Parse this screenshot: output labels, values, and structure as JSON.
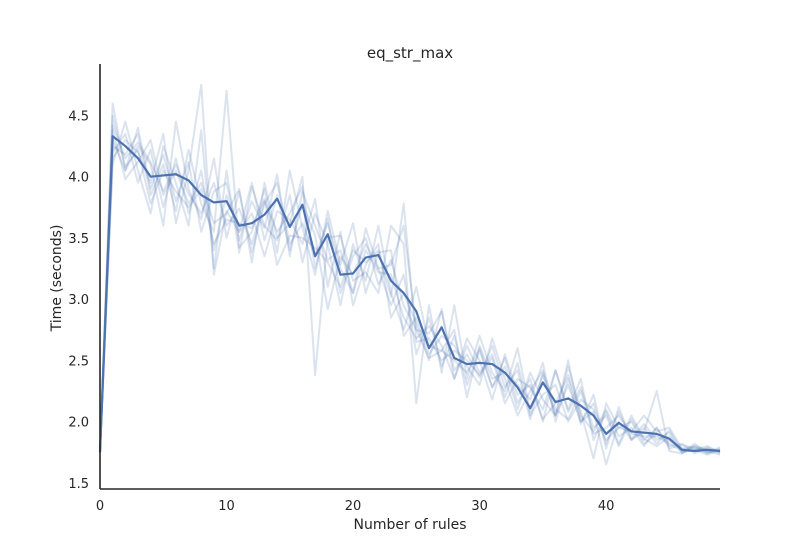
{
  "chart_data": {
    "type": "line",
    "title": "eq_str_max",
    "xlabel": "Number of rules",
    "ylabel": "Time (seconds)",
    "xlim": [
      0,
      49
    ],
    "ylim": [
      1.45,
      4.92
    ],
    "xticks": [
      "0",
      "10",
      "20",
      "30",
      "40"
    ],
    "yticks": [
      "1.5",
      "2.0",
      "2.5",
      "3.0",
      "3.5",
      "4.0",
      "4.5"
    ],
    "grid": false,
    "colors": {
      "mean": "#4c72b0",
      "runs": "#4c72b0",
      "axis": "#262626"
    },
    "x": [
      0,
      1,
      2,
      3,
      4,
      5,
      6,
      7,
      8,
      9,
      10,
      11,
      12,
      13,
      14,
      15,
      16,
      17,
      18,
      19,
      20,
      21,
      22,
      23,
      24,
      25,
      26,
      27,
      28,
      29,
      30,
      31,
      32,
      33,
      34,
      35,
      36,
      37,
      38,
      39,
      40,
      41,
      42,
      43,
      44,
      45,
      46,
      47,
      48,
      49
    ],
    "series": [
      {
        "values": [
          1.75,
          4.33,
          4.25,
          4.15,
          4.0,
          4.01,
          4.02,
          3.97,
          3.85,
          3.79,
          3.8,
          3.6,
          3.62,
          3.69,
          3.82,
          3.59,
          3.77,
          3.35,
          3.53,
          3.2,
          3.21,
          3.34,
          3.36,
          3.15,
          3.05,
          2.9,
          2.6,
          2.77,
          2.52,
          2.47,
          2.48,
          2.47,
          2.4,
          2.28,
          2.11,
          2.32,
          2.16,
          2.19,
          2.13,
          2.05,
          1.9,
          1.99,
          1.92,
          1.91,
          1.9,
          1.86,
          1.77,
          1.76,
          1.77,
          1.76
        ]
      },
      {
        "values": [
          1.75,
          4.42,
          4.15,
          4.28,
          4.12,
          3.88,
          4.1,
          3.86,
          3.7,
          3.95,
          3.6,
          3.74,
          3.45,
          3.8,
          3.55,
          3.7,
          3.92,
          3.25,
          3.66,
          3.05,
          3.35,
          3.5,
          3.12,
          3.32,
          2.95,
          2.75,
          2.72,
          2.9,
          2.42,
          2.55,
          2.36,
          2.62,
          2.28,
          2.42,
          2.02,
          2.4,
          2.05,
          2.3,
          2.0,
          2.15,
          1.82,
          2.08,
          1.86,
          1.98,
          1.85,
          1.91,
          1.74,
          1.8,
          1.74,
          1.78
        ]
      },
      {
        "values": [
          1.75,
          4.6,
          4.05,
          4.4,
          3.9,
          4.18,
          3.8,
          4.12,
          3.55,
          3.88,
          3.95,
          3.48,
          3.8,
          3.58,
          4.02,
          3.35,
          3.88,
          3.6,
          3.32,
          3.4,
          3.05,
          3.58,
          3.25,
          2.95,
          3.2,
          2.55,
          2.85,
          2.45,
          2.7,
          2.3,
          2.58,
          2.28,
          2.52,
          2.15,
          2.35,
          2.0,
          2.42,
          2.08,
          2.28,
          1.95,
          2.05,
          1.8,
          2.02,
          1.85,
          1.95,
          1.8,
          1.82,
          1.74,
          1.79,
          1.75
        ]
      },
      {
        "values": [
          1.75,
          4.2,
          4.35,
          3.95,
          4.22,
          3.75,
          4.15,
          3.7,
          4.05,
          3.4,
          3.85,
          3.55,
          3.7,
          3.35,
          3.72,
          3.65,
          3.45,
          3.82,
          3.1,
          3.55,
          2.95,
          3.28,
          3.45,
          2.85,
          3.05,
          2.8,
          2.5,
          2.92,
          2.35,
          2.62,
          2.4,
          2.55,
          2.2,
          2.48,
          2.05,
          2.22,
          2.3,
          2.0,
          2.18,
          2.1,
          1.85,
          1.95,
          2.0,
          1.82,
          1.9,
          1.84,
          1.78,
          1.77,
          1.73,
          1.77
        ]
      },
      {
        "values": [
          1.75,
          4.1,
          4.45,
          4.05,
          3.7,
          4.25,
          3.95,
          3.6,
          4.38,
          3.25,
          4.05,
          3.38,
          3.92,
          3.6,
          3.48,
          3.85,
          3.3,
          3.7,
          3.45,
          2.95,
          3.45,
          3.15,
          3.6,
          3.05,
          2.75,
          3.1,
          2.62,
          2.58,
          2.75,
          2.2,
          2.62,
          2.35,
          2.4,
          2.3,
          2.18,
          2.48,
          2.0,
          2.35,
          1.98,
          2.22,
          1.78,
          2.12,
          1.85,
          1.95,
          1.82,
          1.93,
          1.76,
          1.79,
          1.76,
          1.73
        ]
      },
      {
        "values": [
          1.75,
          4.3,
          4.05,
          4.25,
          4.1,
          3.6,
          4.45,
          3.9,
          3.65,
          4.15,
          3.5,
          3.88,
          3.38,
          3.78,
          3.95,
          3.45,
          3.62,
          3.35,
          3.62,
          3.25,
          3.05,
          3.4,
          3.22,
          3.2,
          2.85,
          2.68,
          2.78,
          2.62,
          2.35,
          2.68,
          2.5,
          2.18,
          2.55,
          2.22,
          2.3,
          2.02,
          2.15,
          2.38,
          2.05,
          1.92,
          2.1,
          1.88,
          1.95,
          1.8,
          1.95,
          1.78,
          1.81,
          1.78,
          1.75,
          1.79
        ]
      },
      {
        "values": [
          1.75,
          4.25,
          4.18,
          4.35,
          3.85,
          4.1,
          3.72,
          4.22,
          3.78,
          3.55,
          4.7,
          3.42,
          3.55,
          3.9,
          3.38,
          4.05,
          3.58,
          3.2,
          3.72,
          3.28,
          3.62,
          3.05,
          3.38,
          3.4,
          2.7,
          2.85,
          2.55,
          2.7,
          2.62,
          2.45,
          2.3,
          2.68,
          2.35,
          2.05,
          2.25,
          2.42,
          2.1,
          2.02,
          2.25,
          1.9,
          1.95,
          2.05,
          1.9,
          1.88,
          1.88,
          1.82,
          1.76,
          1.76,
          1.78,
          1.74
        ]
      },
      {
        "values": [
          1.75,
          4.38,
          3.98,
          4.12,
          4.3,
          3.85,
          4.05,
          3.78,
          3.95,
          3.62,
          3.7,
          3.9,
          3.3,
          3.95,
          3.5,
          3.62,
          4.0,
          2.38,
          3.5,
          3.52,
          3.15,
          3.22,
          3.05,
          3.6,
          3.45,
          2.15,
          2.95,
          2.4,
          2.95,
          2.35,
          2.7,
          2.4,
          2.25,
          2.6,
          2.08,
          2.38,
          2.05,
          2.45,
          2.08,
          1.7,
          2.15,
          1.95,
          1.92,
          2.05,
          1.92,
          1.95,
          1.78,
          1.8,
          1.77,
          1.76
        ]
      },
      {
        "values": [
          1.75,
          4.15,
          4.3,
          4.2,
          3.95,
          4.35,
          3.62,
          4.05,
          4.75,
          3.2,
          3.72,
          3.55,
          3.95,
          3.48,
          3.85,
          3.4,
          3.78,
          3.52,
          2.92,
          3.35,
          3.2,
          3.45,
          3.25,
          3.28,
          3.6,
          2.75,
          2.52,
          2.58,
          2.5,
          2.4,
          2.6,
          2.28,
          2.45,
          2.1,
          2.4,
          2.18,
          2.05,
          2.5,
          2.0,
          2.08,
          1.65,
          2.0,
          1.85,
          1.92,
          2.25,
          1.76,
          1.74,
          1.82,
          1.75,
          1.77
        ]
      },
      {
        "values": [
          1.75,
          4.5,
          4.08,
          4.22,
          3.78,
          4.05,
          3.88,
          3.75,
          3.9,
          3.45,
          3.65,
          3.62,
          3.58,
          3.82,
          3.28,
          3.52,
          3.5,
          3.42,
          3.3,
          3.1,
          3.4,
          3.3,
          3.4,
          3.02,
          3.78,
          2.65,
          2.68,
          2.5,
          2.58,
          2.5,
          2.38,
          2.52,
          2.15,
          2.35,
          2.28,
          2.1,
          2.42,
          2.1,
          2.35,
          1.85,
          2.08,
          1.82,
          2.05,
          1.86,
          1.8,
          1.88,
          1.75,
          1.77,
          1.8,
          1.75
        ]
      }
    ]
  }
}
